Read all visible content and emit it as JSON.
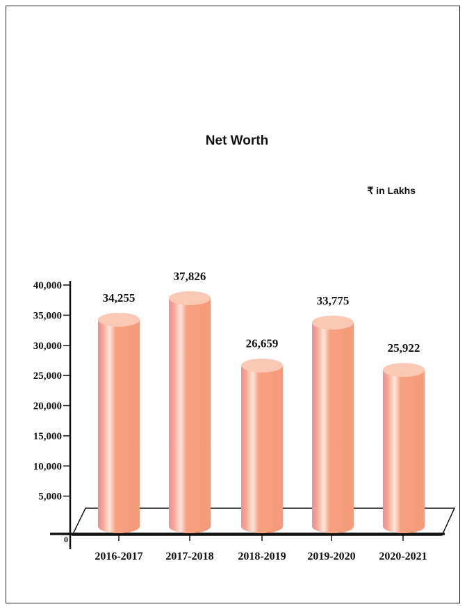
{
  "chart_data": {
    "type": "bar",
    "title": "Net Worth",
    "unit_label": "₹ in Lakhs",
    "categories": [
      "2016-2017",
      "2017-2018",
      "2018-2019",
      "2019-2020",
      "2020-2021"
    ],
    "values": [
      34255,
      37826,
      26659,
      33775,
      25922
    ],
    "value_labels": [
      "34,255",
      "37,826",
      "26,659",
      "33,775",
      "25,922"
    ],
    "ylim": [
      0,
      40000
    ],
    "yticks": [
      5000,
      10000,
      15000,
      20000,
      25000,
      30000,
      35000,
      40000
    ],
    "ytick_labels": [
      "5,000",
      "10,000",
      "15,000",
      "20,000",
      "25,000",
      "30,000",
      "35,000",
      "40,000"
    ],
    "origin_label": "0",
    "grid": false,
    "legend": "none",
    "bar_style": "3d-cylinder",
    "colors": {
      "bar": "#f59a7a",
      "bar_highlight": "#fbe3d8",
      "bar_shade": "#e58f9a",
      "bar_top": "#fbc8b3",
      "axis": "#111111"
    }
  }
}
